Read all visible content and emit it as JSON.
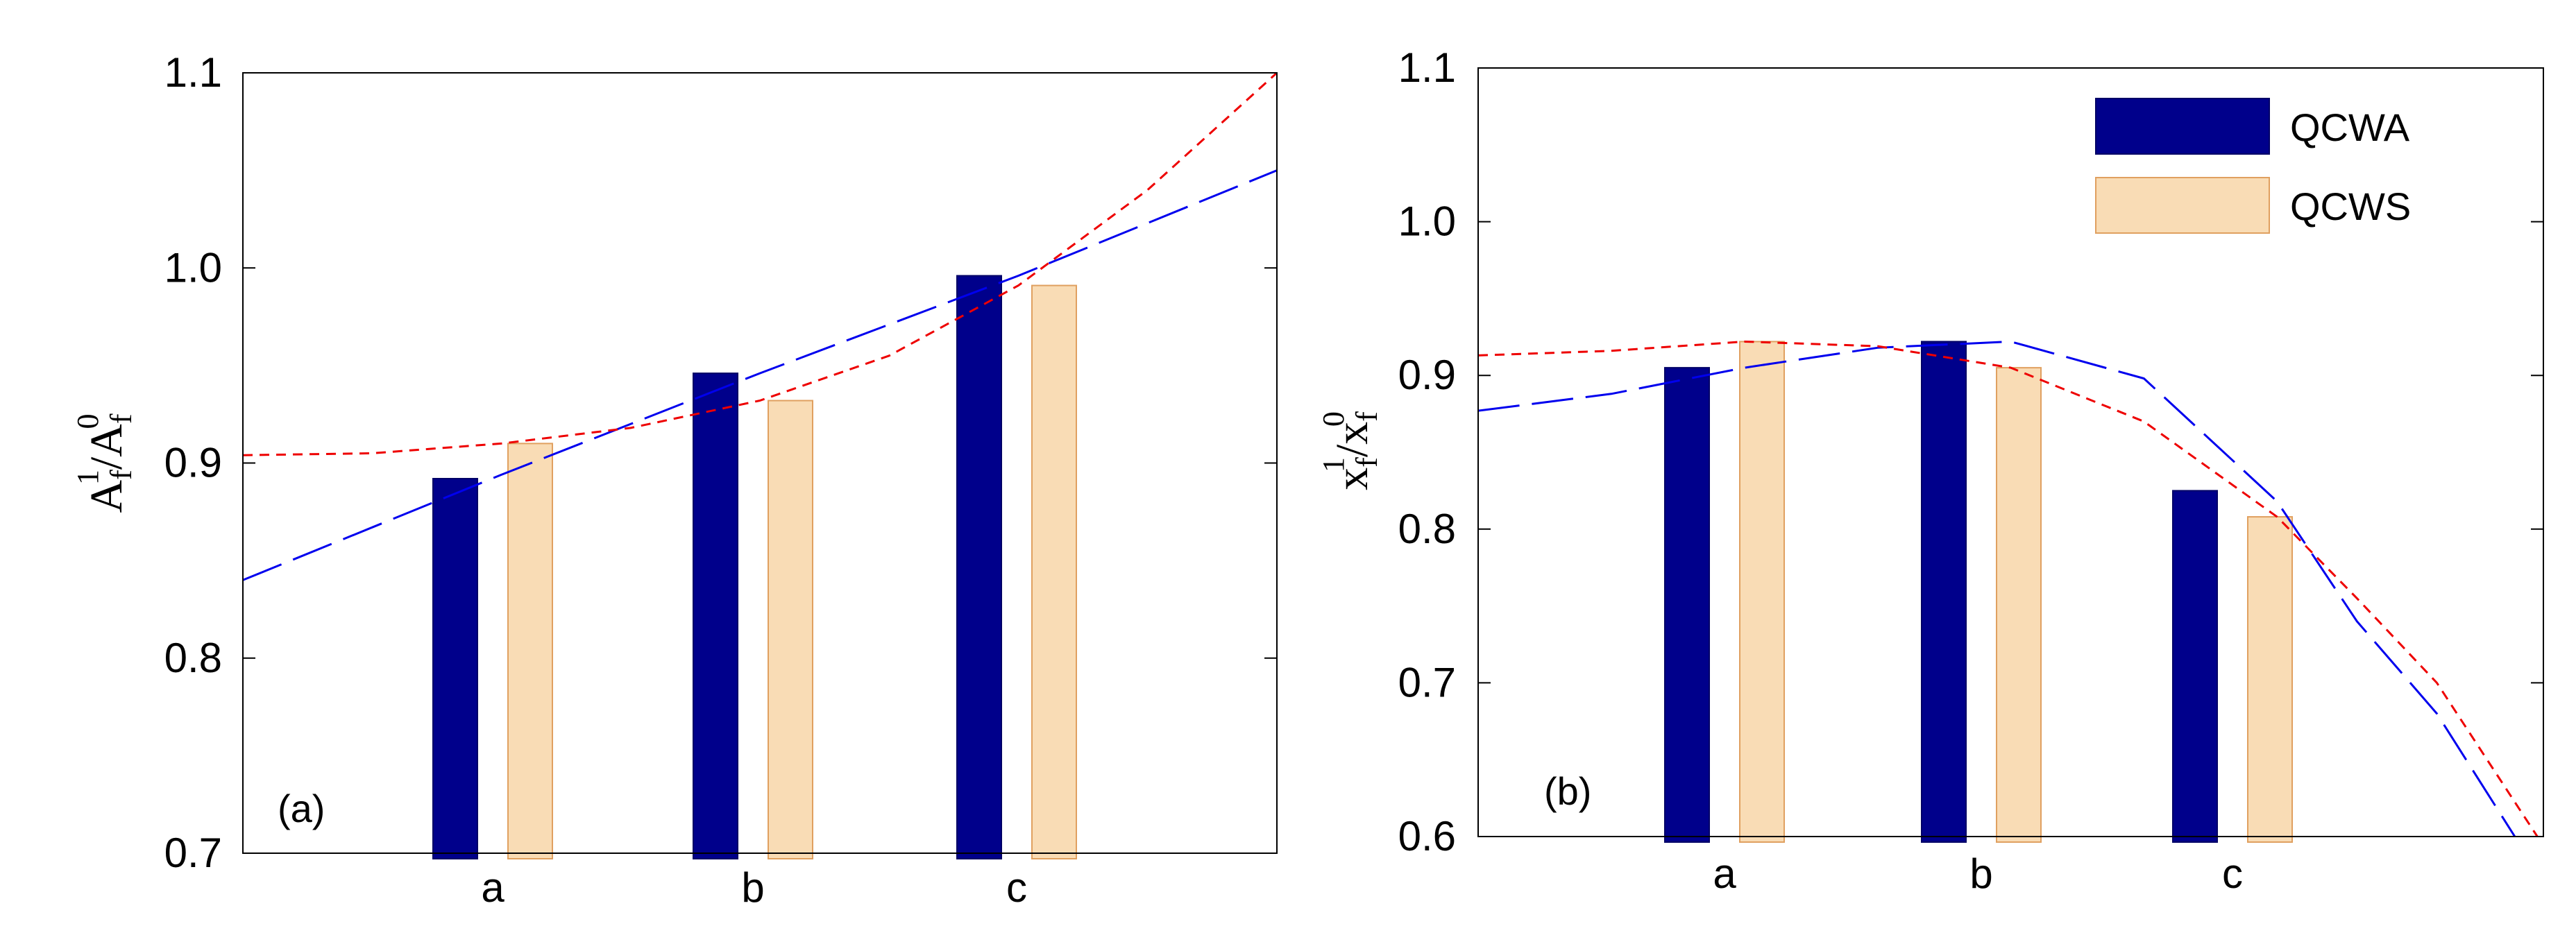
{
  "chart_data": [
    {
      "panel": "(a)",
      "type": "bar",
      "categories": [
        "a",
        "b",
        "c"
      ],
      "ylim": [
        0.7,
        1.1
      ],
      "yticks": [
        "0.7",
        "0.8",
        "0.9",
        "1.0",
        "1.1"
      ],
      "ylabel": {
        "base1": "A",
        "sub1": "f",
        "sup1": "1",
        "slash": "/",
        "base2": "A",
        "sub2": "f",
        "sup2": "0"
      },
      "series": [
        {
          "name": "QCWA",
          "color": "#00008b",
          "edge": "#000066",
          "values": [
            0.892,
            0.946,
            0.996
          ]
        },
        {
          "name": "QCWS",
          "color": "#f9dcb5",
          "edge": "#e0a060",
          "values": [
            0.91,
            0.932,
            0.991
          ]
        }
      ],
      "trend_lines": [
        {
          "name": "QCWA trend",
          "style": "long-dash",
          "color": "#0000ee",
          "x": [
            0,
            0.5,
            1,
            1.5,
            2,
            2.5,
            3,
            3.5,
            4
          ],
          "y": [
            0.84,
            0.867,
            0.894,
            0.92,
            0.946,
            0.971,
            0.996,
            1.023,
            1.05
          ]
        },
        {
          "name": "QCWS trend",
          "style": "short-dash",
          "color": "#ee0000",
          "x": [
            0,
            0.5,
            1,
            1.5,
            2,
            2.5,
            3,
            3.5,
            4
          ],
          "y": [
            0.904,
            0.905,
            0.91,
            0.918,
            0.932,
            0.955,
            0.991,
            1.04,
            1.1
          ]
        }
      ]
    },
    {
      "panel": "(b)",
      "type": "bar",
      "categories": [
        "a",
        "b",
        "c"
      ],
      "ylim": [
        0.6,
        1.1
      ],
      "yticks": [
        "0.6",
        "0.7",
        "0.8",
        "0.9",
        "1.0",
        "1.1"
      ],
      "ylabel": {
        "base1": "x",
        "sub1": "f",
        "sup1": "1",
        "slash": "/",
        "base2": "x",
        "sub2": "f",
        "sup2": "0"
      },
      "legend": {
        "position": "top-right",
        "entries": [
          "QCWA",
          "QCWS"
        ]
      },
      "series": [
        {
          "name": "QCWA",
          "color": "#00008b",
          "edge": "#000066",
          "values": [
            0.905,
            0.922,
            0.825
          ]
        },
        {
          "name": "QCWS",
          "color": "#f9dcb5",
          "edge": "#e0a060",
          "values": [
            0.922,
            0.905,
            0.808
          ]
        }
      ],
      "trend_lines": [
        {
          "name": "QCWA trend",
          "style": "long-dash",
          "color": "#0000ee",
          "x": [
            0,
            0.5,
            1,
            1.5,
            2,
            2.5,
            3,
            3.3,
            3.6,
            3.9
          ],
          "y": [
            0.877,
            0.888,
            0.905,
            0.918,
            0.922,
            0.898,
            0.818,
            0.74,
            0.68,
            0.598
          ]
        },
        {
          "name": "QCWS trend",
          "style": "short-dash",
          "color": "#ee0000",
          "x": [
            0,
            0.5,
            1,
            1.5,
            2,
            2.5,
            3,
            3.3,
            3.6,
            4.0
          ],
          "y": [
            0.913,
            0.916,
            0.922,
            0.919,
            0.905,
            0.87,
            0.808,
            0.755,
            0.7,
            0.594
          ]
        }
      ]
    }
  ]
}
